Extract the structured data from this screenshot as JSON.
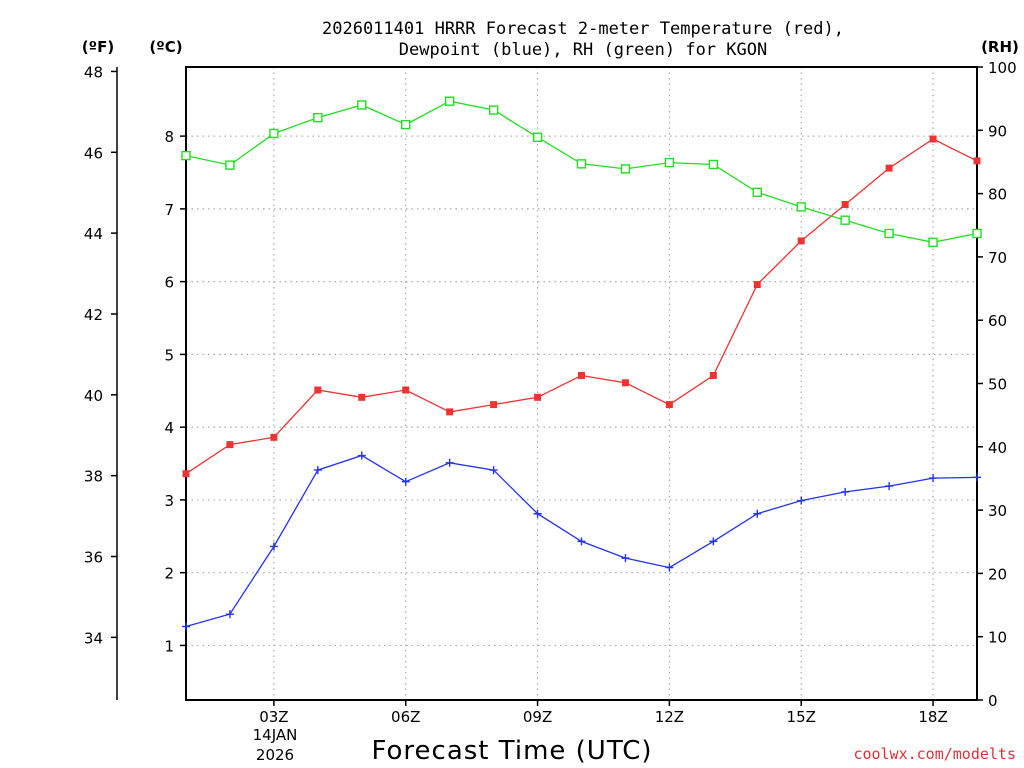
{
  "chart_data": {
    "type": "line",
    "title_line1": "2026011401 HRRR Forecast 2-meter Temperature (red),",
    "title_line2": "Dewpoint (blue), RH (green) for KGON",
    "xlabel": "Forecast Time (UTC)",
    "credit": "coolwx.com/modelts",
    "units": {
      "fahrenheit": "(ºF)",
      "celsius": "(ºC)",
      "rh": "(RH)"
    },
    "x_range": [
      1,
      19
    ],
    "x_ticks": [
      {
        "x": 3,
        "label": "03Z"
      },
      {
        "x": 6,
        "label": "06Z"
      },
      {
        "x": 9,
        "label": "09Z"
      },
      {
        "x": 12,
        "label": "12Z"
      },
      {
        "x": 15,
        "label": "15Z"
      },
      {
        "x": 18,
        "label": "18Z"
      }
    ],
    "date_label_line1": "14JAN",
    "date_label_line2": "2026",
    "celsius_axis": {
      "range": [
        0.25,
        8.95
      ],
      "ticks": [
        1,
        2,
        3,
        4,
        5,
        6,
        7,
        8
      ]
    },
    "fahrenheit_axis": {
      "ticks": [
        34,
        36,
        38,
        40,
        42,
        44,
        46,
        48
      ]
    },
    "rh_axis": {
      "range": [
        0,
        100
      ],
      "ticks": [
        0,
        10,
        20,
        30,
        40,
        50,
        60,
        70,
        80,
        90,
        100
      ]
    },
    "grid": true,
    "series": [
      {
        "name": "Temperature",
        "unit": "C",
        "color": "#ee3333",
        "marker": "filled-square",
        "x": [
          1,
          2,
          3,
          4,
          5,
          6,
          7,
          8,
          9,
          10,
          11,
          12,
          13,
          14,
          15,
          16,
          17,
          18,
          19
        ],
        "values": [
          3.36,
          3.76,
          3.86,
          4.51,
          4.41,
          4.51,
          4.21,
          4.31,
          4.41,
          4.71,
          4.61,
          4.31,
          4.71,
          5.96,
          6.56,
          7.06,
          7.56,
          7.96,
          7.66
        ]
      },
      {
        "name": "Dewpoint",
        "unit": "C",
        "color": "#2233ee",
        "marker": "plus",
        "x": [
          1,
          2,
          3,
          4,
          5,
          6,
          7,
          8,
          9,
          10,
          11,
          12,
          13,
          14,
          15,
          16,
          17,
          18,
          19
        ],
        "values": [
          1.26,
          1.43,
          2.36,
          3.41,
          3.61,
          3.25,
          3.51,
          3.41,
          2.81,
          2.43,
          2.2,
          2.07,
          2.43,
          2.81,
          2.99,
          3.11,
          3.19,
          3.3,
          3.31
        ]
      },
      {
        "name": "RH",
        "unit": "%",
        "color": "#22dd22",
        "marker": "open-square",
        "x": [
          1,
          2,
          3,
          4,
          5,
          6,
          7,
          8,
          9,
          10,
          11,
          12,
          13,
          14,
          15,
          16,
          17,
          18,
          19
        ],
        "values": [
          86,
          84.5,
          89.5,
          92,
          94,
          90.9,
          94.6,
          93.2,
          88.9,
          84.7,
          83.9,
          84.9,
          84.6,
          80.2,
          77.9,
          75.8,
          73.7,
          72.3,
          73.7
        ]
      }
    ]
  }
}
